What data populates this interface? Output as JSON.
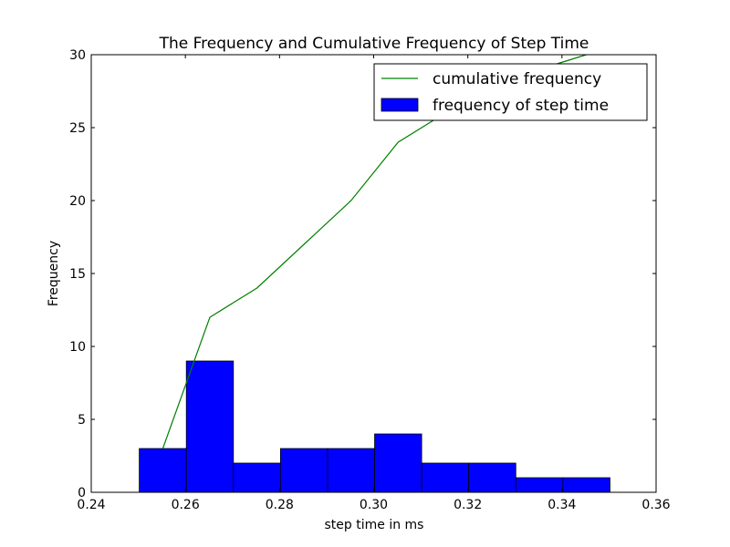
{
  "chart_data": {
    "type": "line",
    "title": "The Frequency and Cumulative Frequency of Step Time",
    "xlabel": "step time in ms",
    "ylabel": "Frequency",
    "xlim": [
      0.24,
      0.36
    ],
    "ylim": [
      0,
      30
    ],
    "xticks": [
      "0.24",
      "0.26",
      "0.28",
      "0.30",
      "0.32",
      "0.34",
      "0.36"
    ],
    "yticks": [
      "0",
      "5",
      "10",
      "15",
      "20",
      "25",
      "30"
    ],
    "grid": false,
    "legend_position": "top-right",
    "series": [
      {
        "name": "cumulative frequency",
        "kind": "line",
        "color": "#008000",
        "x": [
          0.2552,
          0.2652,
          0.2752,
          0.2852,
          0.2952,
          0.3052,
          0.3152,
          0.3252,
          0.3352,
          0.3452
        ],
        "y": [
          3,
          12,
          14,
          17,
          20,
          24,
          26,
          28,
          29,
          30
        ]
      },
      {
        "name": "frequency of step time",
        "kind": "bar",
        "color": "#0000ff",
        "x": [
          0.2552,
          0.2652,
          0.2752,
          0.2852,
          0.2952,
          0.3052,
          0.3152,
          0.3252,
          0.3352,
          0.3452
        ],
        "y": [
          3,
          9,
          2,
          3,
          3,
          4,
          2,
          2,
          1,
          1
        ]
      }
    ]
  }
}
